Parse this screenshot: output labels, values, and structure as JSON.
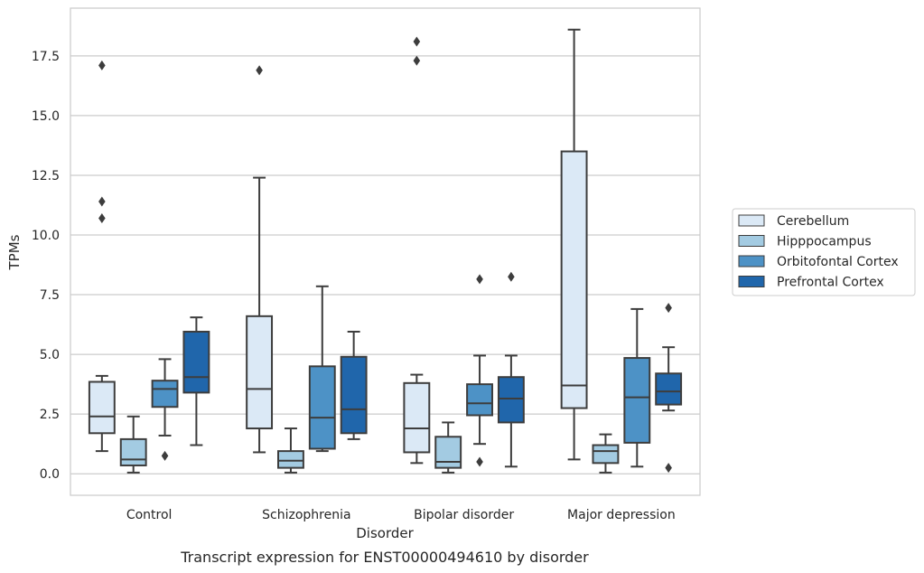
{
  "chart_data": {
    "type": "box",
    "title": "",
    "caption": "Transcript expression for ENST00000494610 by disorder",
    "xlabel": "Disorder",
    "ylabel": "TPMs",
    "ylim": [
      -0.9,
      19.5
    ],
    "yticks": [
      "0.0",
      "2.5",
      "5.0",
      "7.5",
      "10.0",
      "12.5",
      "15.0",
      "17.5"
    ],
    "grid": "horizontal",
    "legend_position": "right",
    "categories": [
      "Control",
      "Schizophrenia",
      "Bipolar disorder",
      "Major depression"
    ],
    "series": [
      {
        "name": "Cerebellum",
        "color": "#dbe9f6",
        "boxes": [
          {
            "whislo": 0.95,
            "q1": 1.7,
            "med": 2.4,
            "q3": 3.85,
            "whishi": 4.1,
            "fliers": [
              10.7,
              11.4,
              17.1
            ]
          },
          {
            "whislo": 0.9,
            "q1": 1.9,
            "med": 3.55,
            "q3": 6.6,
            "whishi": 12.4,
            "fliers": [
              16.9
            ]
          },
          {
            "whislo": 0.45,
            "q1": 0.9,
            "med": 1.9,
            "q3": 3.8,
            "whishi": 4.15,
            "fliers": [
              17.3,
              18.1
            ]
          },
          {
            "whislo": 0.6,
            "q1": 2.75,
            "med": 3.7,
            "q3": 13.5,
            "whishi": 18.6,
            "fliers": []
          }
        ]
      },
      {
        "name": "Hipppocampus",
        "color": "#a3cbe2",
        "boxes": [
          {
            "whislo": 0.05,
            "q1": 0.35,
            "med": 0.6,
            "q3": 1.45,
            "whishi": 2.4,
            "fliers": []
          },
          {
            "whislo": 0.05,
            "q1": 0.25,
            "med": 0.55,
            "q3": 0.95,
            "whishi": 1.9,
            "fliers": []
          },
          {
            "whislo": 0.05,
            "q1": 0.25,
            "med": 0.5,
            "q3": 1.55,
            "whishi": 2.15,
            "fliers": []
          },
          {
            "whislo": 0.05,
            "q1": 0.45,
            "med": 0.95,
            "q3": 1.2,
            "whishi": 1.65,
            "fliers": []
          }
        ]
      },
      {
        "name": "Orbitofontal Cortex",
        "color": "#4d92c6",
        "boxes": [
          {
            "whislo": 1.6,
            "q1": 2.8,
            "med": 3.55,
            "q3": 3.9,
            "whishi": 4.8,
            "fliers": [
              0.75
            ]
          },
          {
            "whislo": 0.95,
            "q1": 1.05,
            "med": 2.35,
            "q3": 4.5,
            "whishi": 7.85,
            "fliers": []
          },
          {
            "whislo": 1.25,
            "q1": 2.45,
            "med": 2.95,
            "q3": 3.75,
            "whishi": 4.95,
            "fliers": [
              0.5,
              8.15
            ]
          },
          {
            "whislo": 0.3,
            "q1": 1.3,
            "med": 3.2,
            "q3": 4.85,
            "whishi": 6.9,
            "fliers": []
          }
        ]
      },
      {
        "name": "Prefrontal Cortex",
        "color": "#2066ab",
        "boxes": [
          {
            "whislo": 1.2,
            "q1": 3.4,
            "med": 4.05,
            "q3": 5.95,
            "whishi": 6.55,
            "fliers": []
          },
          {
            "whislo": 1.45,
            "q1": 1.7,
            "med": 2.7,
            "q3": 4.9,
            "whishi": 5.95,
            "fliers": []
          },
          {
            "whislo": 0.3,
            "q1": 2.15,
            "med": 3.15,
            "q3": 4.05,
            "whishi": 4.95,
            "fliers": [
              8.25
            ]
          },
          {
            "whislo": 2.65,
            "q1": 2.9,
            "med": 3.45,
            "q3": 4.2,
            "whishi": 5.3,
            "fliers": [
              0.25,
              6.95
            ]
          }
        ]
      }
    ]
  }
}
